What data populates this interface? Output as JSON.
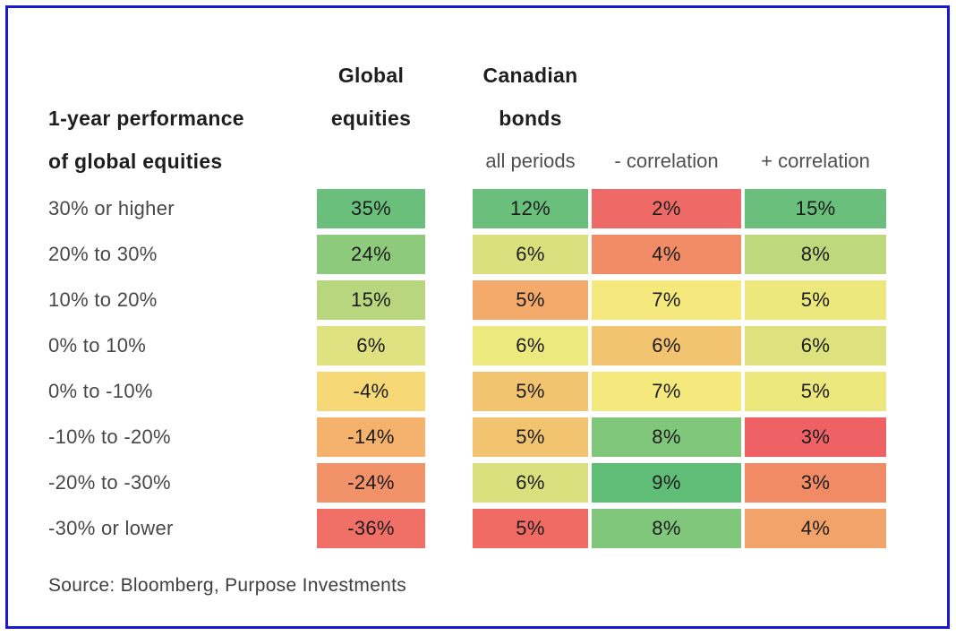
{
  "frame": {
    "border_color": "#1a1acc"
  },
  "header": {
    "row_title_line1": "1-year performance",
    "row_title_line2": "of global equities",
    "global_line1": "Global",
    "global_line2": "equities",
    "canadian_line1": "Canadian",
    "canadian_line2": "bonds",
    "sub_all_periods": "all periods",
    "sub_neg_correlation": "- correlation",
    "sub_pos_correlation": "+ correlation"
  },
  "source_note": "Source: Bloomberg, Purpose Investments",
  "chart_data": {
    "type": "heatmap",
    "title": "1-year performance of global equities",
    "column_groups": [
      "Global equities",
      "Canadian bonds"
    ],
    "columns": [
      "Global equities",
      "Canadian bonds — all periods",
      "Canadian bonds — - correlation",
      "Canadian bonds — + correlation"
    ],
    "row_labels": [
      "30% or higher",
      "20% to 30%",
      "10% to 20%",
      "0% to 10%",
      "0% to -10%",
      "-10% to -20%",
      "-20% to -30%",
      "-30% or lower"
    ],
    "values_pct": [
      [
        35,
        12,
        2,
        15
      ],
      [
        24,
        6,
        4,
        8
      ],
      [
        15,
        5,
        7,
        5
      ],
      [
        6,
        6,
        6,
        6
      ],
      [
        -4,
        5,
        7,
        5
      ],
      [
        -14,
        5,
        8,
        3
      ],
      [
        -24,
        6,
        9,
        3
      ],
      [
        -36,
        5,
        8,
        4
      ]
    ],
    "cell_labels": [
      [
        "35%",
        "12%",
        "2%",
        "15%"
      ],
      [
        "24%",
        "6%",
        "4%",
        "8%"
      ],
      [
        "15%",
        "5%",
        "7%",
        "5%"
      ],
      [
        "6%",
        "6%",
        "6%",
        "6%"
      ],
      [
        "-4%",
        "5%",
        "7%",
        "5%"
      ],
      [
        "-14%",
        "5%",
        "8%",
        "3%"
      ],
      [
        "-24%",
        "6%",
        "9%",
        "3%"
      ],
      [
        "-36%",
        "5%",
        "8%",
        "4%"
      ]
    ],
    "cell_colors": [
      [
        "#69bf7b",
        "#69bf7b",
        "#ee6a66",
        "#69bf7b"
      ],
      [
        "#8eca7c",
        "#dbe07e",
        "#f18c66",
        "#bdd87d"
      ],
      [
        "#b7d67d",
        "#f3aa6a",
        "#f5e87d",
        "#ece87e"
      ],
      [
        "#dfe280",
        "#ecea7f",
        "#f3c46f",
        "#dde27f"
      ],
      [
        "#f6d876",
        "#f3c46f",
        "#f5e87d",
        "#ece87e"
      ],
      [
        "#f4b26c",
        "#f3c46f",
        "#80c67b",
        "#ee6165"
      ],
      [
        "#f29268",
        "#dbe07e",
        "#5fbd76",
        "#f18b66"
      ],
      [
        "#f07067",
        "#ef6b64",
        "#80c67b",
        "#f2a369"
      ]
    ],
    "layout": {
      "grid": "off",
      "legend": "none",
      "value_format": "percent"
    }
  }
}
